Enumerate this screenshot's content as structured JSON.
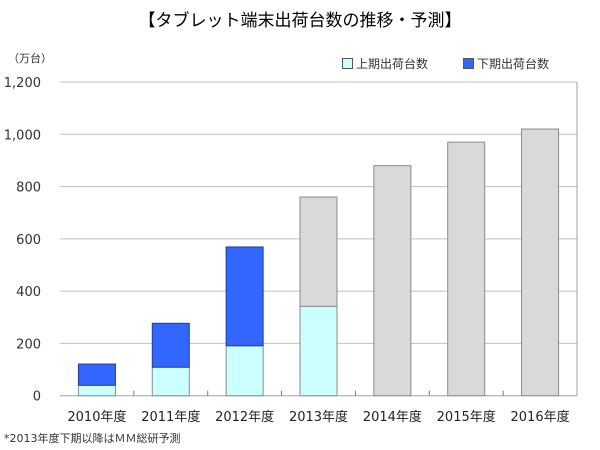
{
  "chart_data": {
    "type": "bar",
    "stacked": true,
    "title": "【タブレット端末出荷台数の推移・予測】",
    "ylabel": "（万台）",
    "categories": [
      "2010年度",
      "2011年度",
      "2012年度",
      "2013年度",
      "2014年度",
      "2015年度",
      "2016年度"
    ],
    "ylim": [
      0,
      1200
    ],
    "yticks": [
      "0",
      "200",
      "400",
      "600",
      "800",
      "1,000",
      "1,200"
    ],
    "ytick_values": [
      0,
      200,
      400,
      600,
      800,
      1000,
      1200
    ],
    "grid": true,
    "legend_position": "top-right",
    "series": [
      {
        "name": "上期出荷台数",
        "color": "#ccffff",
        "values": [
          40,
          109,
          191,
          342,
          null,
          null,
          null
        ]
      },
      {
        "name": "下期出荷台数",
        "color": "#3366ff",
        "values": [
          81,
          168,
          378,
          null,
          null,
          null,
          null
        ]
      },
      {
        "color": "#d9d9d9",
        "values": [
          null,
          null,
          null,
          418,
          880,
          970,
          1020
        ]
      }
    ],
    "footnote": "*2013年度下期以降はＭＭ総研予測"
  }
}
